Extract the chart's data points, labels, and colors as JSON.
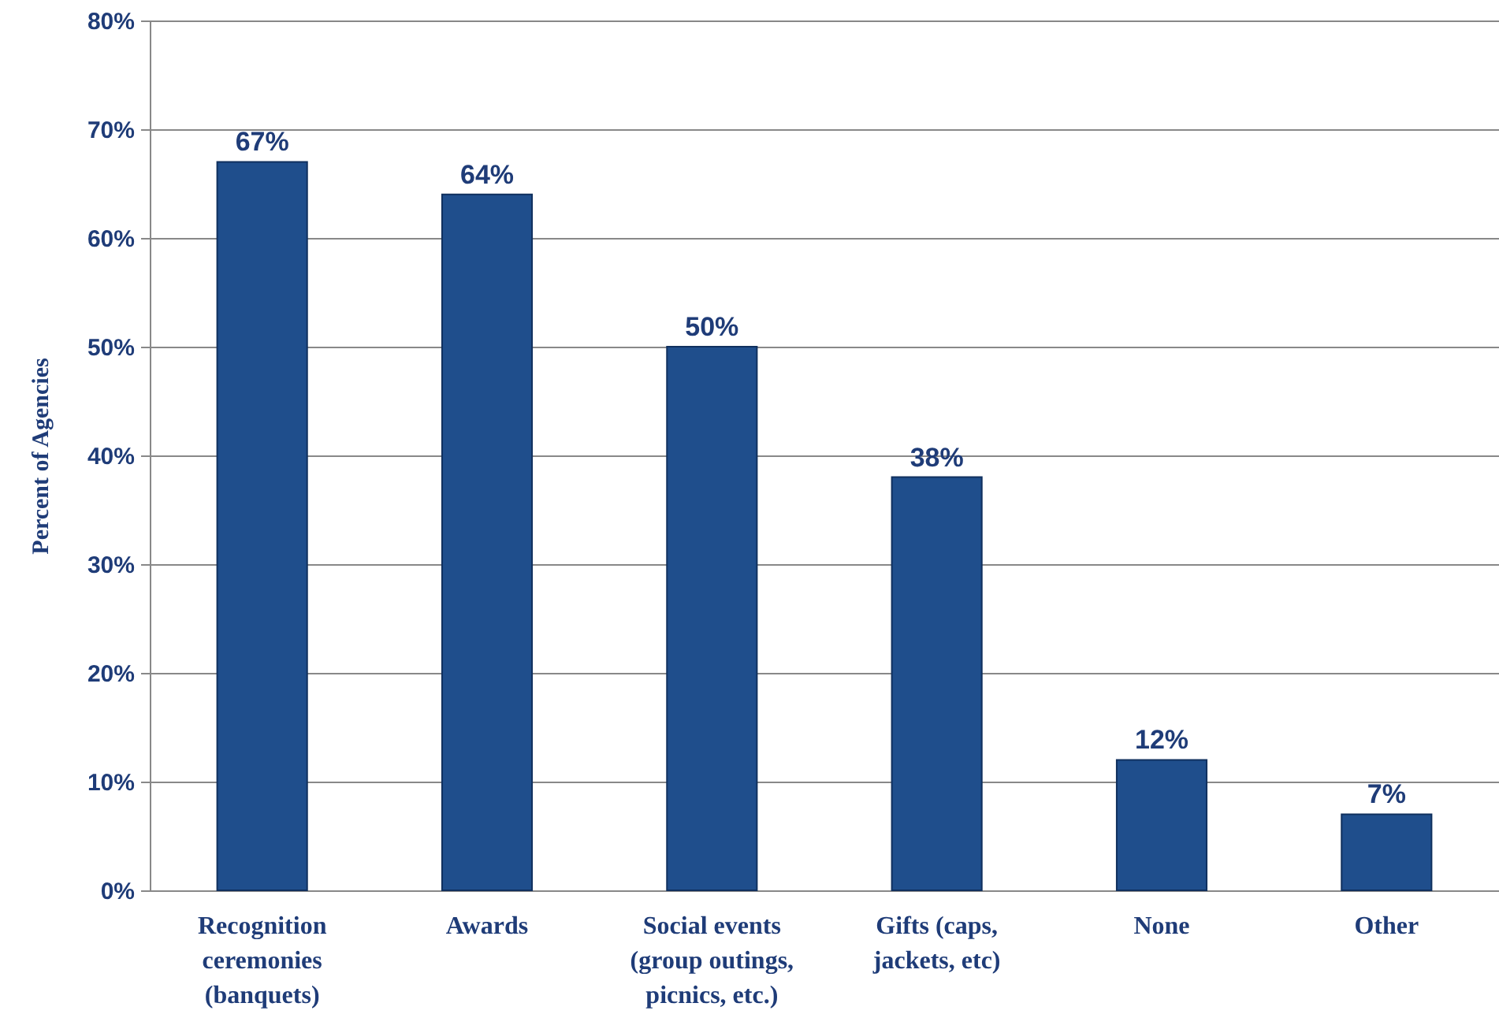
{
  "chart_data": {
    "type": "bar",
    "ylabel": "Percent of Agencies",
    "categories": [
      "Recognition\nceremonies\n(banquets)",
      "Awards",
      "Social events\n(group outings,\npicnics, etc.)",
      "Gifts (caps,\njackets, etc)",
      "None",
      "Other"
    ],
    "values": [
      67,
      64,
      50,
      38,
      12,
      7
    ],
    "value_labels": [
      "67%",
      "64%",
      "50%",
      "38%",
      "12%",
      "7%"
    ],
    "color": "#1f4e8c",
    "ylim": [
      0,
      80
    ],
    "yticks": [
      {
        "value": 0,
        "label": "0%"
      },
      {
        "value": 10,
        "label": "10%"
      },
      {
        "value": 20,
        "label": "20%"
      },
      {
        "value": 30,
        "label": "30%"
      },
      {
        "value": 40,
        "label": "40%"
      },
      {
        "value": 50,
        "label": "50%"
      },
      {
        "value": 60,
        "label": "60%"
      },
      {
        "value": 70,
        "label": "70%"
      },
      {
        "value": 80,
        "label": "80%"
      }
    ],
    "grid": "y"
  }
}
